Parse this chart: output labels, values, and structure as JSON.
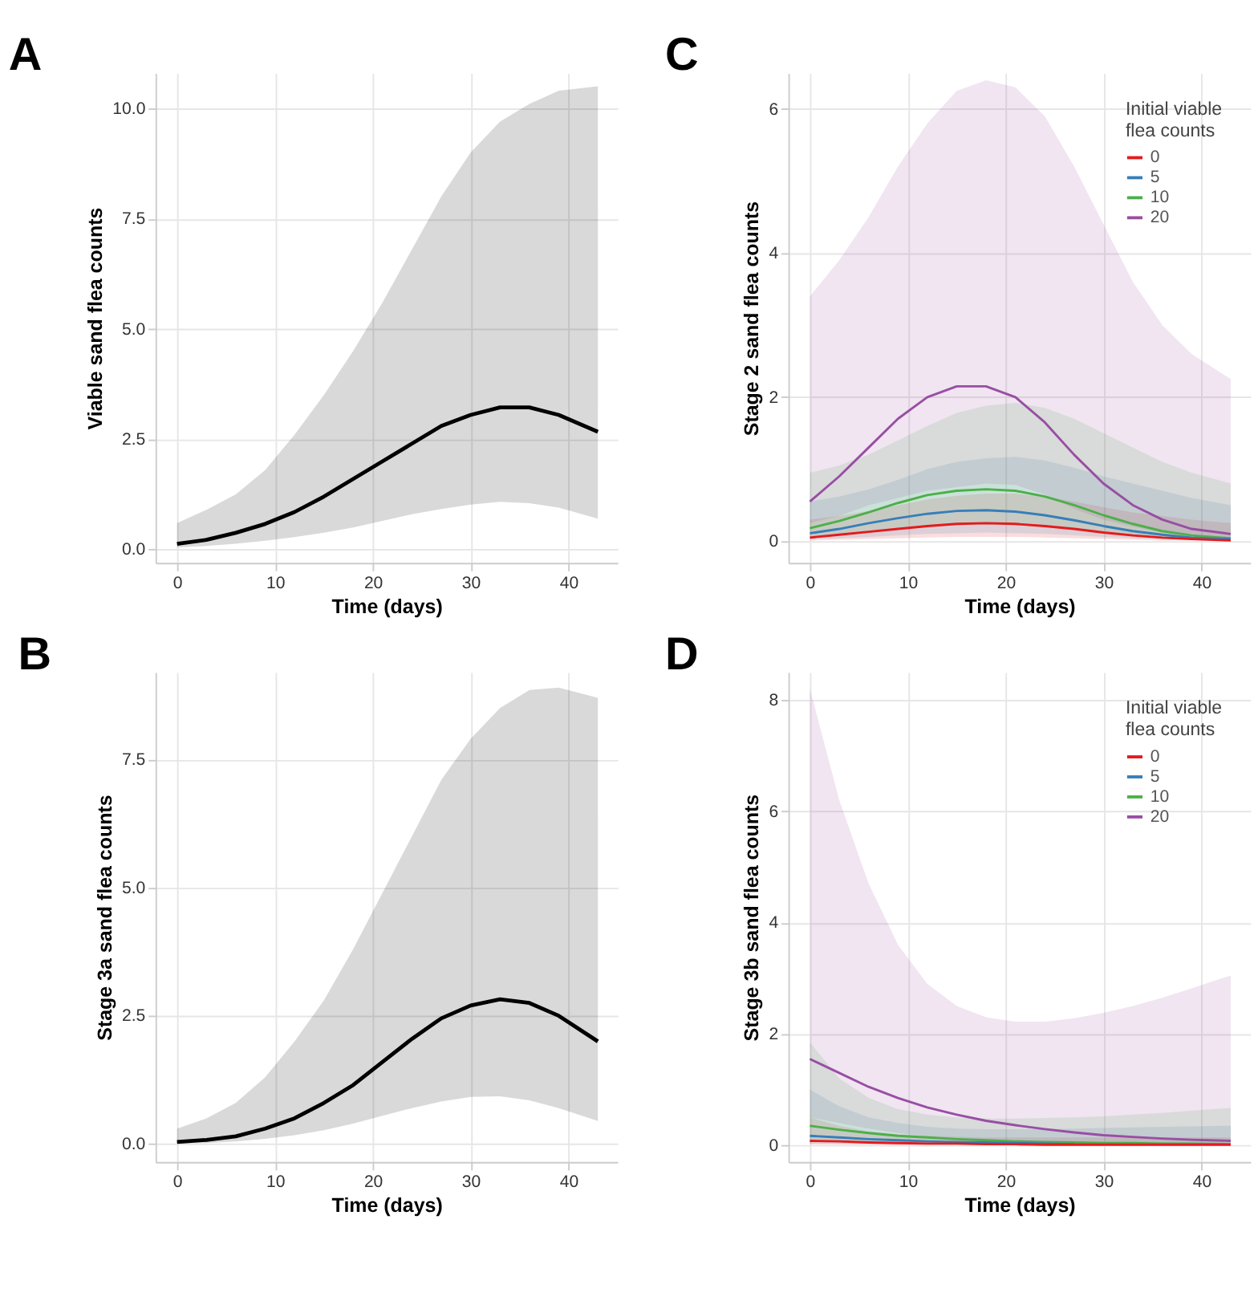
{
  "chart_data": [
    {
      "type": "line",
      "title": "A",
      "xlabel": "Time (days)",
      "ylabel": "Viable sand flea counts",
      "x": [
        0,
        3,
        6,
        9,
        12,
        15,
        18,
        21,
        24,
        27,
        30,
        33,
        36,
        39,
        43
      ],
      "xlim": [
        -2.2,
        45
      ],
      "xticks": [
        0,
        10,
        20,
        30,
        40
      ],
      "ylim": [
        -0.3,
        10.8
      ],
      "yticks": [
        {
          "value": 0,
          "label": "0.0"
        },
        2.5,
        {
          "value": 5,
          "label": "5.0"
        },
        7.5,
        {
          "value": 10,
          "label": "10.0"
        }
      ],
      "grid": true,
      "series": [
        {
          "color": "#000000",
          "values": [
            0.13,
            0.22,
            0.38,
            0.58,
            0.85,
            1.2,
            1.6,
            2.0,
            2.4,
            2.8,
            3.05,
            3.22,
            3.22,
            3.05,
            2.67
          ],
          "lower": [
            0.05,
            0.08,
            0.13,
            0.2,
            0.28,
            0.38,
            0.5,
            0.65,
            0.8,
            0.92,
            1.02,
            1.08,
            1.05,
            0.95,
            0.7
          ],
          "upper": [
            0.6,
            0.9,
            1.25,
            1.8,
            2.6,
            3.5,
            4.5,
            5.6,
            6.8,
            8.0,
            9.0,
            9.7,
            10.1,
            10.4,
            10.5
          ]
        }
      ]
    },
    {
      "type": "line",
      "title": "C",
      "xlabel": "Time (days)",
      "ylabel": "Stage 2 sand flea counts",
      "x": [
        0,
        3,
        6,
        9,
        12,
        15,
        18,
        21,
        24,
        27,
        30,
        33,
        36,
        39,
        43
      ],
      "xlim": [
        -2.2,
        45
      ],
      "xticks": [
        0,
        10,
        20,
        30,
        40
      ],
      "ylim": [
        -0.3,
        6.5
      ],
      "yticks": [
        0,
        2,
        4,
        6
      ],
      "grid": true,
      "legend": "top right",
      "legend_title": "Initial viable flea counts",
      "series": [
        {
          "name": "0",
          "color": "#e41a1c",
          "values": [
            0.05,
            0.09,
            0.13,
            0.17,
            0.21,
            0.24,
            0.25,
            0.24,
            0.21,
            0.17,
            0.12,
            0.08,
            0.05,
            0.03,
            0.01
          ],
          "lower": [
            0.01,
            0.02,
            0.03,
            0.04,
            0.05,
            0.06,
            0.06,
            0.06,
            0.05,
            0.04,
            0.03,
            0.02,
            0.01,
            0.01,
            0.0
          ],
          "upper": [
            0.3,
            0.35,
            0.42,
            0.5,
            0.58,
            0.63,
            0.66,
            0.66,
            0.62,
            0.55,
            0.47,
            0.4,
            0.35,
            0.3,
            0.25
          ]
        },
        {
          "name": "5",
          "color": "#377eb8",
          "values": [
            0.11,
            0.17,
            0.25,
            0.32,
            0.38,
            0.42,
            0.43,
            0.41,
            0.36,
            0.29,
            0.21,
            0.14,
            0.09,
            0.05,
            0.03
          ],
          "lower": [
            0.03,
            0.04,
            0.06,
            0.08,
            0.1,
            0.11,
            0.12,
            0.11,
            0.1,
            0.08,
            0.06,
            0.04,
            0.03,
            0.02,
            0.01
          ],
          "upper": [
            0.55,
            0.62,
            0.72,
            0.85,
            1.0,
            1.1,
            1.15,
            1.17,
            1.12,
            1.02,
            0.9,
            0.8,
            0.7,
            0.6,
            0.5
          ]
        },
        {
          "name": "10",
          "color": "#4daf4a",
          "values": [
            0.18,
            0.28,
            0.4,
            0.53,
            0.64,
            0.7,
            0.72,
            0.7,
            0.62,
            0.5,
            0.36,
            0.24,
            0.14,
            0.08,
            0.04
          ],
          "lower": [
            0.05,
            0.08,
            0.12,
            0.17,
            0.2,
            0.22,
            0.23,
            0.22,
            0.2,
            0.16,
            0.12,
            0.08,
            0.05,
            0.03,
            0.02
          ],
          "upper": [
            0.95,
            1.05,
            1.2,
            1.4,
            1.6,
            1.78,
            1.88,
            1.92,
            1.85,
            1.7,
            1.5,
            1.3,
            1.1,
            0.95,
            0.8
          ]
        },
        {
          "name": "20",
          "color": "#984ea3",
          "values": [
            0.55,
            0.9,
            1.3,
            1.7,
            2.0,
            2.15,
            2.15,
            2.0,
            1.65,
            1.2,
            0.8,
            0.5,
            0.3,
            0.17,
            0.1
          ],
          "lower": [
            0.25,
            0.35,
            0.5,
            0.6,
            0.7,
            0.75,
            0.8,
            0.78,
            0.65,
            0.45,
            0.3,
            0.2,
            0.12,
            0.07,
            0.04
          ],
          "upper": [
            3.4,
            3.9,
            4.5,
            5.2,
            5.8,
            6.25,
            6.4,
            6.3,
            5.9,
            5.2,
            4.4,
            3.6,
            3.0,
            2.6,
            2.25
          ]
        }
      ]
    },
    {
      "type": "line",
      "title": "B",
      "xlabel": "Time (days)",
      "ylabel": "Stage 3a sand flea counts",
      "x": [
        0,
        3,
        6,
        9,
        12,
        15,
        18,
        21,
        24,
        27,
        30,
        33,
        36,
        39,
        43
      ],
      "xlim": [
        -2.2,
        45
      ],
      "xticks": [
        0,
        10,
        20,
        30,
        40
      ],
      "ylim": [
        -0.35,
        9.2
      ],
      "yticks": [
        {
          "value": 0,
          "label": "0.0"
        },
        2.5,
        {
          "value": 5,
          "label": "5.0"
        },
        7.5
      ],
      "grid": true,
      "series": [
        {
          "color": "#000000",
          "values": [
            0.04,
            0.08,
            0.15,
            0.3,
            0.5,
            0.8,
            1.15,
            1.6,
            2.05,
            2.45,
            2.7,
            2.82,
            2.75,
            2.5,
            2.0
          ],
          "lower": [
            0.01,
            0.02,
            0.05,
            0.1,
            0.17,
            0.27,
            0.4,
            0.55,
            0.7,
            0.83,
            0.92,
            0.93,
            0.85,
            0.7,
            0.45
          ],
          "upper": [
            0.3,
            0.5,
            0.8,
            1.3,
            2.0,
            2.8,
            3.8,
            4.9,
            6.0,
            7.1,
            7.9,
            8.5,
            8.85,
            8.9,
            8.7
          ]
        }
      ]
    },
    {
      "type": "line",
      "title": "D",
      "xlabel": "Time (days)",
      "ylabel": "Stage 3b sand flea counts",
      "x": [
        0,
        3,
        6,
        9,
        12,
        15,
        18,
        21,
        24,
        27,
        30,
        33,
        36,
        39,
        43
      ],
      "xlim": [
        -2.2,
        45
      ],
      "xticks": [
        0,
        10,
        20,
        30,
        40
      ],
      "ylim": [
        -0.3,
        8.5
      ],
      "yticks": [
        0,
        2,
        4,
        6,
        8
      ],
      "grid": true,
      "legend": "top right",
      "legend_title": "Initial viable flea counts",
      "series": [
        {
          "name": "0",
          "color": "#e41a1c",
          "values": [
            0.08,
            0.07,
            0.05,
            0.04,
            0.03,
            0.03,
            0.02,
            0.02,
            0.01,
            0.01,
            0.01,
            0.01,
            0.01,
            0.01,
            0.01
          ],
          "lower": [
            0.01,
            0.01,
            0.01,
            0.005,
            0.005,
            0.004,
            0.003,
            0.002,
            0.002,
            0.001,
            0.001,
            0.001,
            0.001,
            0.0,
            0.0
          ],
          "upper": [
            0.5,
            0.35,
            0.25,
            0.2,
            0.17,
            0.15,
            0.14,
            0.14,
            0.14,
            0.14,
            0.14,
            0.14,
            0.14,
            0.14,
            0.14
          ]
        },
        {
          "name": "5",
          "color": "#377eb8",
          "values": [
            0.17,
            0.14,
            0.11,
            0.09,
            0.07,
            0.06,
            0.05,
            0.04,
            0.03,
            0.02,
            null,
            null,
            null,
            null,
            null
          ],
          "lower": [
            0.03,
            0.025,
            0.02,
            0.015,
            0.012,
            0.01,
            0.008,
            0.006,
            0.005,
            0.004,
            0.003,
            0.002,
            0.002,
            0.001,
            0.001
          ],
          "upper": [
            1.0,
            0.7,
            0.5,
            0.4,
            0.33,
            0.3,
            0.29,
            0.29,
            0.29,
            0.3,
            0.31,
            0.32,
            0.33,
            0.34,
            0.35
          ]
        },
        {
          "name": "10",
          "color": "#4daf4a",
          "values": [
            0.35,
            0.28,
            0.22,
            0.17,
            0.14,
            0.11,
            0.09,
            0.07,
            0.06,
            0.05,
            0.04,
            0.04,
            0.03,
            0.03,
            0.02
          ],
          "lower": [
            0.08,
            0.06,
            0.05,
            0.04,
            0.03,
            0.025,
            0.02,
            0.015,
            0.012,
            0.01,
            0.008,
            0.006,
            0.005,
            0.004,
            0.003
          ],
          "upper": [
            1.85,
            1.2,
            0.85,
            0.65,
            0.55,
            0.5,
            0.48,
            0.48,
            0.49,
            0.5,
            0.52,
            0.55,
            0.58,
            0.62,
            0.67
          ]
        },
        {
          "name": "20",
          "color": "#984ea3",
          "values": [
            1.55,
            1.3,
            1.05,
            0.85,
            0.68,
            0.55,
            0.44,
            0.36,
            0.29,
            0.23,
            0.18,
            0.15,
            0.12,
            0.1,
            0.08
          ],
          "lower": [
            0.5,
            0.4,
            0.3,
            0.22,
            0.16,
            0.12,
            0.09,
            0.07,
            0.05,
            0.04,
            0.03,
            0.025,
            0.02,
            0.02,
            0.02
          ],
          "upper": [
            8.2,
            6.2,
            4.7,
            3.6,
            2.9,
            2.5,
            2.3,
            2.22,
            2.22,
            2.28,
            2.38,
            2.5,
            2.65,
            2.82,
            3.05
          ]
        }
      ]
    }
  ]
}
